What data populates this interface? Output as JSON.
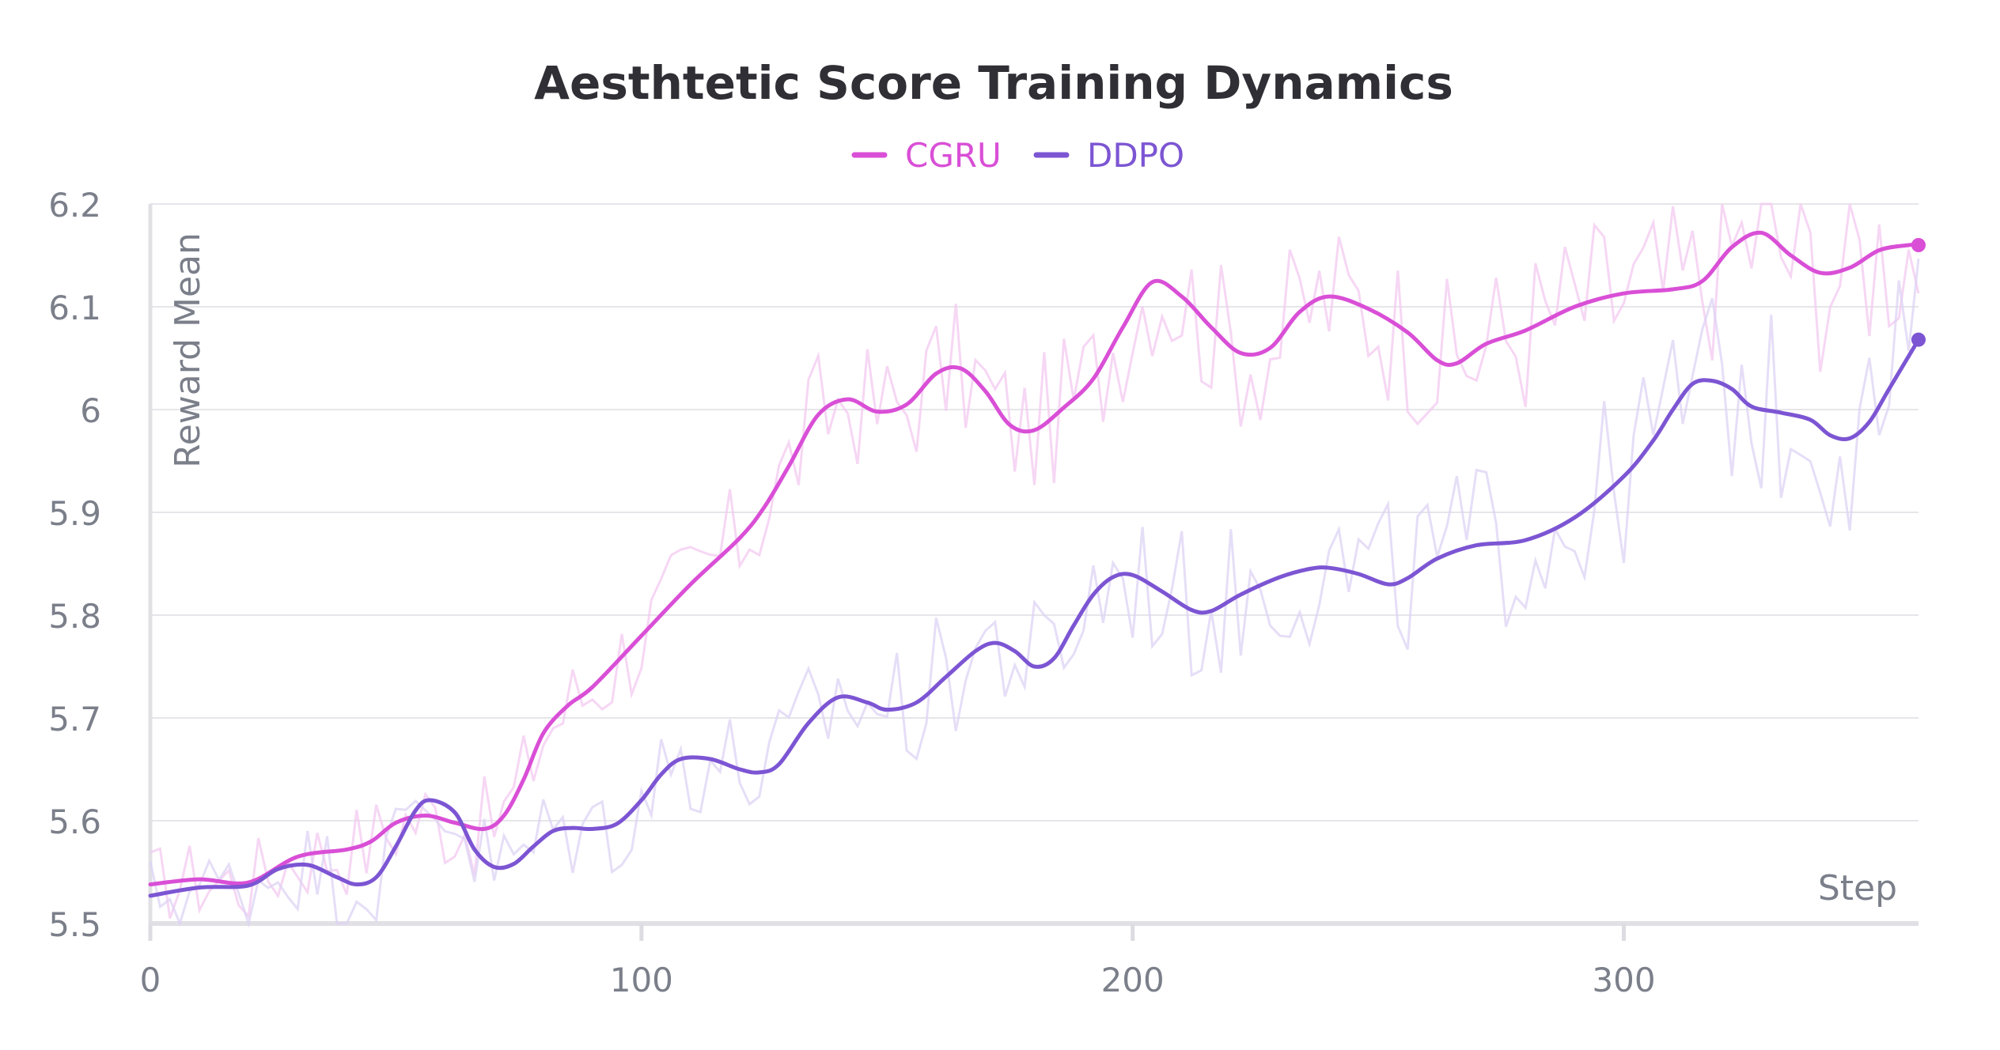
{
  "chart_data": {
    "type": "line",
    "title": "Aesthtetic Score Training Dynamics",
    "xlabel": "Step",
    "ylabel": "Reward Mean",
    "xlim": [
      0,
      360
    ],
    "ylim": [
      5.5,
      6.2
    ],
    "x_ticks": [
      0,
      100,
      200,
      300
    ],
    "y_ticks": [
      5.5,
      5.6,
      5.7,
      5.8,
      5.9,
      6.0,
      6.1,
      6.2
    ],
    "y_tick_labels": [
      "5.5",
      "5.6",
      "5.7",
      "5.8",
      "5.9",
      "6",
      "6.1",
      "6.2"
    ],
    "grid": true,
    "legend_position": "top-center",
    "series": [
      {
        "name": "CGRU",
        "color": "#d94fd6",
        "x": [
          0,
          10,
          20,
          30,
          40,
          45,
          50,
          56,
          62,
          68,
          72,
          76,
          80,
          85,
          90,
          100,
          110,
          120,
          125,
          130,
          136,
          142,
          148,
          154,
          160,
          165,
          170,
          175,
          180,
          186,
          192,
          198,
          204,
          210,
          216,
          222,
          228,
          234,
          240,
          248,
          256,
          262,
          266,
          272,
          280,
          290,
          300,
          310,
          316,
          322,
          328,
          334,
          340,
          346,
          352,
          358,
          360
        ],
        "y": [
          5.538,
          5.543,
          5.54,
          5.565,
          5.572,
          5.58,
          5.598,
          5.605,
          5.598,
          5.592,
          5.605,
          5.64,
          5.685,
          5.712,
          5.73,
          5.78,
          5.83,
          5.875,
          5.905,
          5.945,
          5.995,
          6.01,
          5.998,
          6.005,
          6.035,
          6.04,
          6.018,
          5.985,
          5.98,
          6.002,
          6.03,
          6.08,
          6.124,
          6.11,
          6.08,
          6.055,
          6.06,
          6.095,
          6.11,
          6.098,
          6.075,
          6.048,
          6.045,
          6.064,
          6.077,
          6.1,
          6.113,
          6.117,
          6.125,
          6.158,
          6.172,
          6.15,
          6.133,
          6.138,
          6.155,
          6.16,
          6.16
        ]
      },
      {
        "name": "DDPO",
        "color": "#7c55d3",
        "x": [
          0,
          10,
          20,
          26,
          32,
          38,
          42,
          46,
          50,
          54,
          57,
          62,
          66,
          70,
          74,
          78,
          82,
          86,
          90,
          95,
          100,
          104,
          108,
          114,
          120,
          124,
          128,
          134,
          140,
          146,
          150,
          156,
          162,
          168,
          172,
          176,
          180,
          184,
          188,
          192,
          196,
          200,
          206,
          212,
          216,
          222,
          230,
          236,
          240,
          246,
          252,
          256,
          262,
          270,
          280,
          290,
          300,
          306,
          310,
          314,
          318,
          322,
          326,
          332,
          338,
          342,
          346,
          350,
          354,
          360
        ],
        "y": [
          5.527,
          5.535,
          5.537,
          5.553,
          5.557,
          5.545,
          5.538,
          5.545,
          5.575,
          5.61,
          5.62,
          5.608,
          5.572,
          5.555,
          5.558,
          5.575,
          5.59,
          5.593,
          5.592,
          5.597,
          5.62,
          5.645,
          5.66,
          5.66,
          5.65,
          5.647,
          5.655,
          5.695,
          5.72,
          5.715,
          5.708,
          5.715,
          5.74,
          5.765,
          5.773,
          5.765,
          5.75,
          5.758,
          5.79,
          5.82,
          5.837,
          5.839,
          5.823,
          5.805,
          5.804,
          5.82,
          5.837,
          5.845,
          5.846,
          5.84,
          5.83,
          5.836,
          5.855,
          5.868,
          5.873,
          5.895,
          5.935,
          5.97,
          6.0,
          6.025,
          6.028,
          6.02,
          6.003,
          5.997,
          5.99,
          5.975,
          5.972,
          5.988,
          6.02,
          6.068
        ]
      }
    ]
  }
}
